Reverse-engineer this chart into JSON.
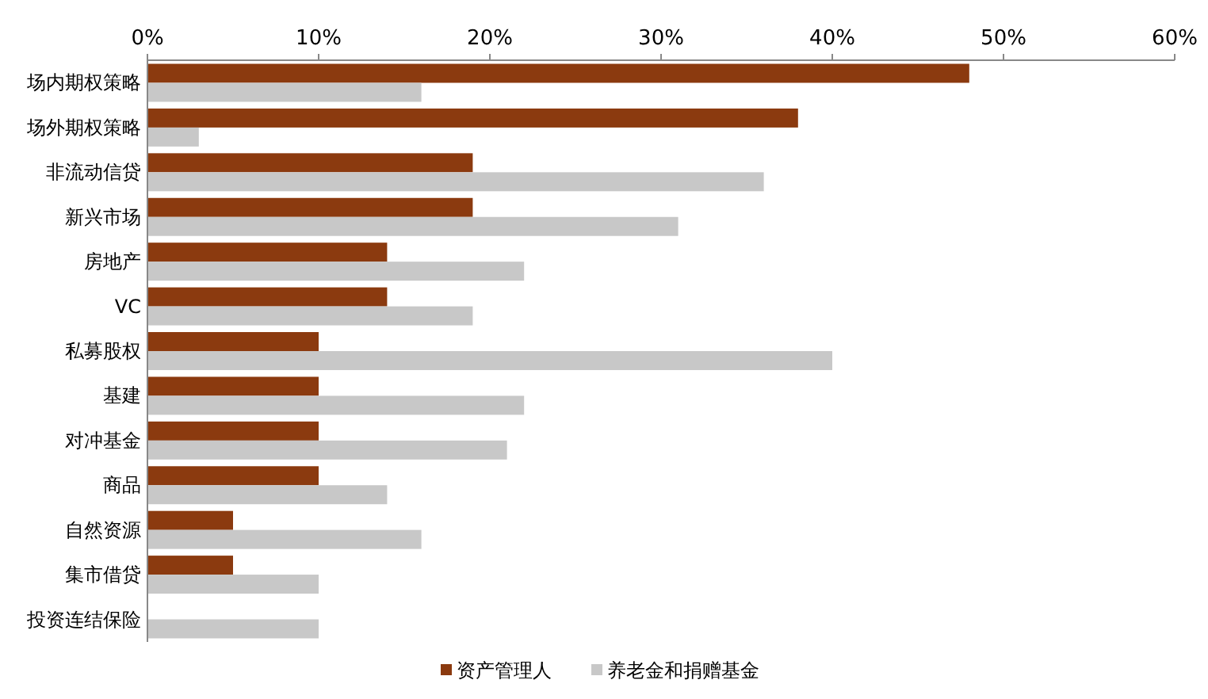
{
  "chart_data": {
    "type": "bar",
    "orientation": "horizontal",
    "categories": [
      "场内期权策略",
      "场外期权策略",
      "非流动信贷",
      "新兴市场",
      "房地产",
      "VC",
      "私募股权",
      "基建",
      "对冲基金",
      "商品",
      "自然资源",
      "集市借贷",
      "投资连结保险"
    ],
    "series": [
      {
        "name": "资产管理人",
        "color": "#8b3a0f",
        "values": [
          48,
          38,
          19,
          19,
          14,
          14,
          10,
          10,
          10,
          10,
          5,
          5,
          null
        ]
      },
      {
        "name": "养老金和捐赠基金",
        "color": "#c8c8c8",
        "values": [
          16,
          3,
          36,
          31,
          22,
          19,
          40,
          22,
          21,
          14,
          16,
          10,
          10
        ]
      }
    ],
    "xlim": [
      0,
      60
    ],
    "xticks": [
      {
        "value": 0,
        "label": "0%"
      },
      {
        "value": 10,
        "label": "10%"
      },
      {
        "value": 20,
        "label": "20%"
      },
      {
        "value": 30,
        "label": "30%"
      },
      {
        "value": 40,
        "label": "40%"
      },
      {
        "value": 50,
        "label": "50%"
      },
      {
        "value": 60,
        "label": "60%"
      }
    ],
    "grid": false,
    "legend": "bottom"
  }
}
